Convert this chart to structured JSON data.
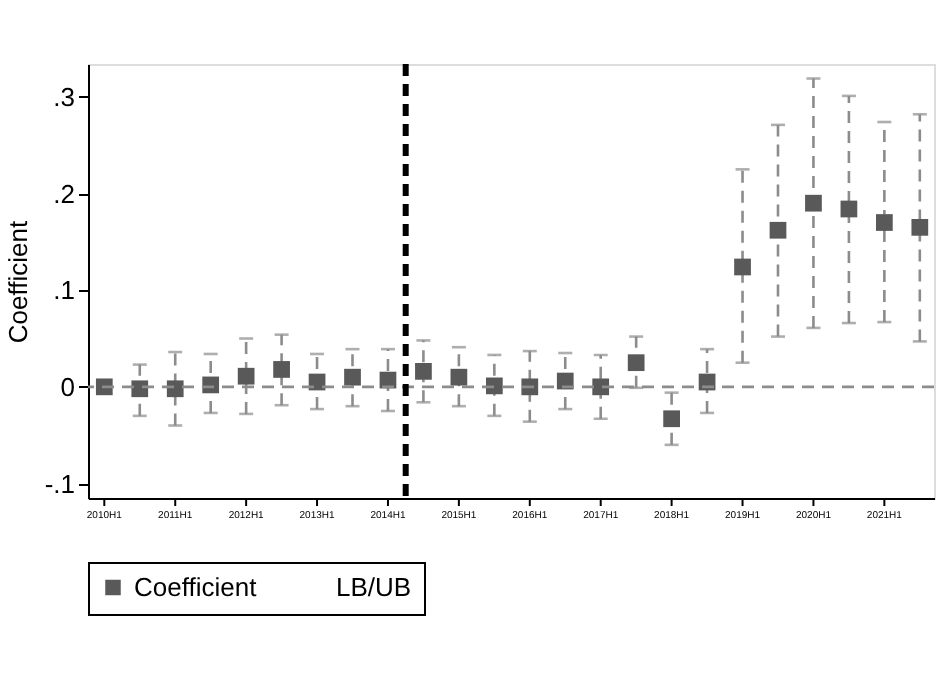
{
  "chart_data": {
    "type": "scatter",
    "ylabel": "Coefficient",
    "categories": [
      "2010H1",
      null,
      "2011H1",
      null,
      "2012H1",
      null,
      "2013H1",
      null,
      "2014H1",
      null,
      "2015H1",
      null,
      "2016H1",
      null,
      "2017H1",
      null,
      "2018H1",
      null,
      "2019H1",
      null,
      "2020H1",
      null,
      "2021H1",
      null
    ],
    "series": [
      {
        "name": "Coefficient",
        "color": "#595959",
        "values": [
          0,
          -0.002,
          -0.002,
          0.002,
          0.011,
          0.018,
          0.005,
          0.01,
          0.007,
          0.016,
          0.01,
          0.001,
          0,
          0.006,
          0,
          0.025,
          -0.033,
          0.005,
          0.124,
          0.162,
          0.19,
          0.184,
          0.17,
          0.165
        ],
        "errors": [
          null,
          [
            -0.03,
            0.023
          ],
          [
            -0.04,
            0.036
          ],
          [
            -0.027,
            0.034
          ],
          [
            -0.028,
            0.05
          ],
          [
            -0.019,
            0.054
          ],
          [
            -0.023,
            0.034
          ],
          [
            -0.02,
            0.039
          ],
          [
            -0.025,
            0.039
          ],
          [
            -0.016,
            0.048
          ],
          [
            -0.02,
            0.041
          ],
          [
            -0.03,
            0.033
          ],
          [
            -0.036,
            0.037
          ],
          [
            -0.023,
            0.035
          ],
          [
            -0.033,
            0.033
          ],
          [
            -0.001,
            0.052
          ],
          [
            -0.06,
            -0.006
          ],
          [
            -0.027,
            0.039
          ],
          [
            0.025,
            0.225
          ],
          [
            0.052,
            0.271
          ],
          [
            0.061,
            0.319
          ],
          [
            0.066,
            0.301
          ],
          [
            0.067,
            0.274
          ],
          [
            0.047,
            0.282
          ]
        ]
      }
    ],
    "annotations": [
      "LB/UB"
    ],
    "marker": "square",
    "ylim": [
      -0.115,
      0.334
    ],
    "yticks": [
      {
        "value": -0.1,
        "label": "-.1"
      },
      {
        "value": 0,
        "label": "0"
      },
      {
        "value": 0.1,
        "label": ".1"
      },
      {
        "value": 0.2,
        "label": ".2"
      },
      {
        "value": 0.3,
        "label": ".3"
      }
    ],
    "ref_lines": [
      {
        "axis": "y",
        "value": 0,
        "color": "#8c8c8c",
        "line_style": "dashed"
      },
      {
        "axis": "x",
        "value": "2014H1",
        "color": "#000000",
        "line_style": "dashed"
      }
    ],
    "legend": "bottom"
  }
}
